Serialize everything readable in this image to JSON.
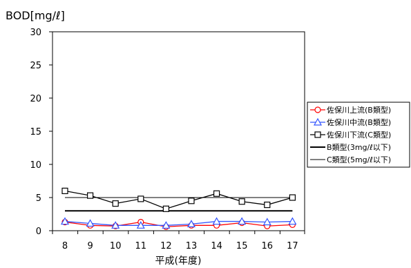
{
  "chart_data": {
    "type": "line",
    "title": "",
    "ylabel": "BOD[mg/ℓ]",
    "xlabel": "平成(年度)",
    "categories": [
      "8",
      "9",
      "10",
      "11",
      "12",
      "13",
      "14",
      "15",
      "16",
      "17"
    ],
    "ylim": [
      0,
      30
    ],
    "yticks": [
      "0",
      "5",
      "10",
      "15",
      "20",
      "25",
      "30"
    ],
    "grid": false,
    "legend_position": "right",
    "series": [
      {
        "name": "佐保川上流(B類型)",
        "color": "#ff0000",
        "marker": "circle",
        "values": [
          1.3,
          0.8,
          0.7,
          1.3,
          0.6,
          0.8,
          0.8,
          1.2,
          0.7,
          0.9
        ]
      },
      {
        "name": "佐保川中流(B類型)",
        "color": "#3355ff",
        "marker": "triangle",
        "values": [
          1.4,
          1.1,
          0.8,
          0.8,
          0.8,
          1.0,
          1.4,
          1.4,
          1.3,
          1.4
        ]
      },
      {
        "name": "佐保川下流(C類型)",
        "color": "#000000",
        "marker": "square",
        "values": [
          6.0,
          5.3,
          4.1,
          4.8,
          3.3,
          4.5,
          5.6,
          4.4,
          3.9,
          5.0
        ]
      },
      {
        "name": "B類型(3mg/ℓ以下)",
        "color": "#000000",
        "marker": "none",
        "width": 2,
        "values": [
          3,
          3,
          3,
          3,
          3,
          3,
          3,
          3,
          3,
          3
        ]
      },
      {
        "name": "C類型(5mg/ℓ以下)",
        "color": "#000000",
        "marker": "none",
        "width": 1,
        "values": [
          5,
          5,
          5,
          5,
          5,
          5,
          5,
          5,
          5,
          5
        ]
      }
    ]
  }
}
